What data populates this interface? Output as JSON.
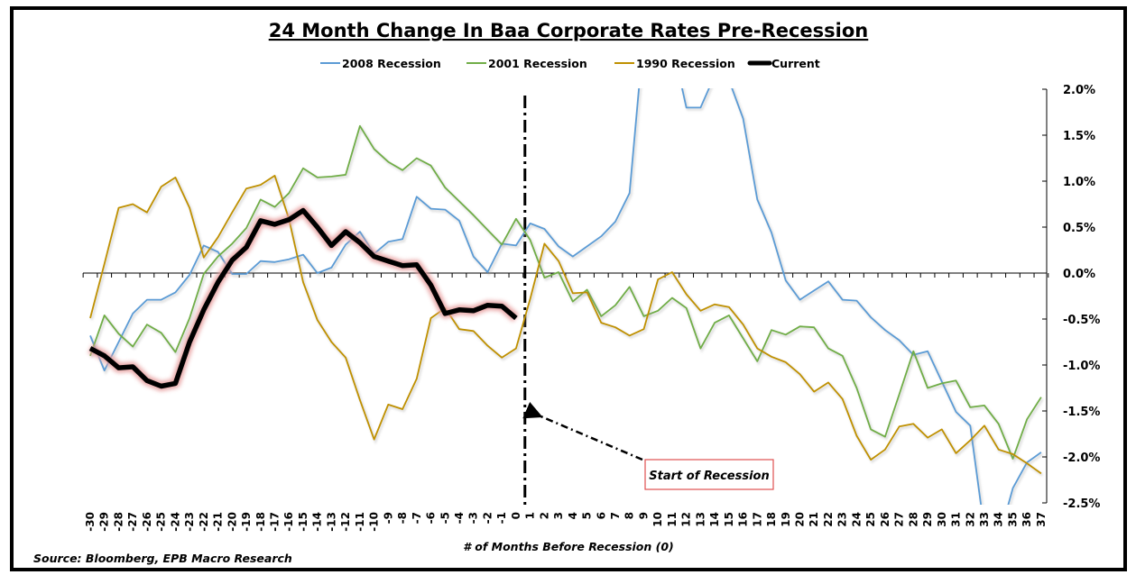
{
  "chart_data": {
    "type": "line",
    "title": "24 Month Change In Baa Corporate Rates Pre-Recession",
    "xlabel": "# of Months Before Recession (0)",
    "ylabel": "",
    "source": "Source: Bloomberg, EPB Macro Research",
    "y_axis_side": "right",
    "ylim": [
      -2.5,
      2.0
    ],
    "y_ticks": [
      2.0,
      1.5,
      1.0,
      0.5,
      0.0,
      -0.5,
      -1.0,
      -1.5,
      -2.0,
      -2.5
    ],
    "y_tick_labels": [
      "2.0%",
      "1.5%",
      "1.0%",
      "0.5%",
      "0.0%",
      "-0.5%",
      "-1.0%",
      "-1.5%",
      "-2.0%",
      "-2.5%"
    ],
    "x": [
      -30,
      -29,
      -28,
      -27,
      -26,
      -25,
      -24,
      -23,
      -22,
      -21,
      -20,
      -19,
      -18,
      -17,
      -16,
      -15,
      -14,
      -13,
      -12,
      -11,
      -10,
      -9,
      -8,
      -7,
      -6,
      -5,
      -4,
      -3,
      -2,
      -1,
      0,
      1,
      2,
      3,
      4,
      5,
      6,
      7,
      8,
      9,
      10,
      11,
      12,
      13,
      14,
      15,
      16,
      17,
      18,
      19,
      20,
      21,
      22,
      23,
      24,
      25,
      26,
      27,
      28,
      29,
      30,
      31,
      32,
      33,
      34,
      35,
      36,
      37
    ],
    "grid": false,
    "legend_position": "top-center",
    "series": [
      {
        "name": "2008 Recession",
        "color": "#5B9BD5",
        "values": [
          -0.68,
          -1.06,
          -0.75,
          -0.44,
          -0.29,
          -0.29,
          -0.21,
          -0.02,
          0.3,
          0.23,
          -0.01,
          -0.01,
          0.13,
          0.12,
          0.15,
          0.2,
          0.0,
          0.06,
          0.31,
          0.45,
          0.21,
          0.34,
          0.37,
          0.83,
          0.7,
          0.69,
          0.57,
          0.18,
          0.01,
          0.32,
          0.3,
          0.54,
          0.48,
          0.29,
          0.18,
          0.29,
          0.4,
          0.56,
          0.87,
          2.6,
          2.9,
          2.5,
          1.8,
          1.8,
          2.15,
          2.1,
          1.68,
          0.8,
          0.44,
          -0.08,
          -0.29,
          -0.19,
          -0.09,
          -0.29,
          -0.3,
          -0.48,
          -0.62,
          -0.73,
          -0.89,
          -0.85,
          -1.18,
          -1.51,
          -1.66,
          -2.8,
          -2.9,
          -2.34,
          -2.06,
          -1.95
        ]
      },
      {
        "name": "2001 Recession",
        "color": "#70AD47",
        "values": [
          -0.9,
          -0.46,
          -0.66,
          -0.8,
          -0.56,
          -0.65,
          -0.86,
          -0.49,
          -0.01,
          0.18,
          0.32,
          0.49,
          0.8,
          0.72,
          0.87,
          1.14,
          1.04,
          1.05,
          1.07,
          1.6,
          1.35,
          1.21,
          1.12,
          1.25,
          1.17,
          0.93,
          0.78,
          0.63,
          0.47,
          0.31,
          0.59,
          0.36,
          -0.05,
          0.01,
          -0.31,
          -0.18,
          -0.47,
          -0.35,
          -0.15,
          -0.47,
          -0.41,
          -0.27,
          -0.38,
          -0.82,
          -0.54,
          -0.46,
          -0.71,
          -0.96,
          -0.62,
          -0.67,
          -0.58,
          -0.59,
          -0.82,
          -0.9,
          -1.25,
          -1.7,
          -1.78,
          -1.32,
          -0.85,
          -1.25,
          -1.2,
          -1.17,
          -1.46,
          -1.44,
          -1.64,
          -2.02,
          -1.59,
          -1.35
        ]
      },
      {
        "name": "1990 Recession",
        "color": "#BF9000",
        "values": [
          -0.49,
          0.1,
          0.71,
          0.75,
          0.66,
          0.94,
          1.04,
          0.71,
          0.17,
          0.39,
          0.66,
          0.92,
          0.96,
          1.06,
          0.59,
          -0.1,
          -0.51,
          -0.75,
          -0.92,
          -1.38,
          -1.81,
          -1.43,
          -1.48,
          -1.15,
          -0.49,
          -0.38,
          -0.61,
          -0.63,
          -0.79,
          -0.92,
          -0.82,
          -0.28,
          0.32,
          0.13,
          -0.22,
          -0.21,
          -0.54,
          -0.59,
          -0.68,
          -0.61,
          -0.07,
          0.01,
          -0.23,
          -0.41,
          -0.34,
          -0.37,
          -0.56,
          -0.82,
          -0.91,
          -0.97,
          -1.1,
          -1.29,
          -1.19,
          -1.37,
          -1.77,
          -2.03,
          -1.92,
          -1.67,
          -1.64,
          -1.79,
          -1.7,
          -1.96,
          -1.82,
          -1.66,
          -1.92,
          -1.97,
          -2.07,
          -2.18
        ]
      },
      {
        "name": "Current",
        "color": "#000000",
        "values": [
          -0.82,
          -0.9,
          -1.03,
          -1.02,
          -1.17,
          -1.23,
          -1.2,
          -0.75,
          -0.4,
          -0.1,
          0.14,
          0.28,
          0.57,
          0.53,
          0.58,
          0.68,
          0.5,
          0.3,
          0.45,
          0.33,
          0.18,
          0.13,
          0.08,
          0.09,
          -0.13,
          -0.44,
          -0.4,
          -0.41,
          -0.35,
          -0.36,
          -0.49
        ]
      }
    ],
    "annotations": [
      {
        "text": "Start of Recession",
        "points_to_x": 0.5,
        "vertical_marker_x": 0.5
      }
    ]
  }
}
